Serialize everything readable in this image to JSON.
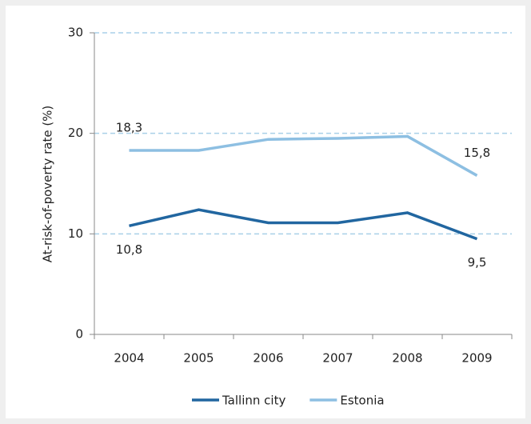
{
  "chart_data": {
    "type": "line",
    "y_label": "At-risk-of-poverty rate (%)",
    "categories": [
      "2004",
      "2005",
      "2006",
      "2007",
      "2008",
      "2009"
    ],
    "series": [
      {
        "name": "Tallinn city",
        "color": "#2166a0",
        "values": [
          10.8,
          12.4,
          11.1,
          11.1,
          12.1,
          9.5
        ],
        "value_labels": [
          "10,8",
          null,
          null,
          null,
          null,
          "9,5"
        ]
      },
      {
        "name": "Estonia",
        "color": "#8dbfe2",
        "values": [
          18.3,
          18.3,
          19.4,
          19.5,
          19.7,
          15.8
        ],
        "value_labels": [
          "18,3",
          null,
          null,
          null,
          null,
          "15,8"
        ]
      }
    ],
    "ylim": [
      0,
      30
    ],
    "yticks": [
      0,
      10,
      20,
      30
    ],
    "grid": true,
    "legend": "bottom"
  }
}
